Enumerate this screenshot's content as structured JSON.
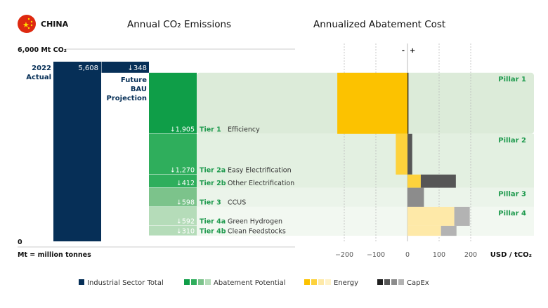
{
  "header": {
    "country": "CHINA",
    "flag_icon": "china-flag-icon",
    "left_title": "Annual CO₂ Emissions",
    "right_title": "Annualized Abatement Cost"
  },
  "colors": {
    "navy": "#062f57",
    "greens": [
      "#0f9e48",
      "#2fae5c",
      "#7cc38b",
      "#b5dcb9"
    ],
    "pillar_bands": [
      "#dcebd9",
      "#e3f0e1",
      "#ebf4ea",
      "#f2f8f1"
    ],
    "energy": [
      "#fcc200",
      "#fdd23c",
      "#fee9a8"
    ],
    "capex": [
      "#1f1f1f",
      "#565656",
      "#8c8c8c",
      "#b3b3b3"
    ],
    "label_green": "#1f9a4e"
  },
  "chart_data": [
    {
      "type": "bar",
      "title": "Annual CO₂ Emissions",
      "ylabel_top": "6,000 Mt CO₂",
      "ylabel_zero": "0",
      "unit_note": "Mt = million tonnes",
      "ylim": [
        0,
        6000
      ],
      "actual": {
        "label": [
          "2022",
          "Actual"
        ],
        "value": 5608,
        "value_label": "5,608"
      },
      "bau": {
        "label": [
          "Future",
          "BAU",
          "Projection"
        ],
        "reduction": 348,
        "reduction_label": "↓348"
      },
      "tiers": [
        {
          "tier": "Tier 1",
          "name": "Efficiency",
          "value": 1905,
          "value_label": "↓1,905",
          "pillar": 1
        },
        {
          "tier": "Tier 2a",
          "name": "Easy Electrification",
          "value": 1270,
          "value_label": "↓1,270",
          "pillar": 2
        },
        {
          "tier": "Tier 2b",
          "name": "Other Electrification",
          "value": 412,
          "value_label": "↓412",
          "pillar": 2
        },
        {
          "tier": "Tier 3",
          "name": "CCUS",
          "value": 598,
          "value_label": "↓598",
          "pillar": 3
        },
        {
          "tier": "Tier 4a",
          "name": "Green Hydrogen",
          "value": 592,
          "value_label": "↓592",
          "pillar": 4
        },
        {
          "tier": "Tier 4b",
          "name": "Clean Feedstocks",
          "value": 310,
          "value_label": "↓310",
          "pillar": 4
        }
      ]
    },
    {
      "type": "bar",
      "orientation": "horizontal-stacked",
      "title": "Annualized Abatement Cost",
      "xlabel": "USD / tCO₂",
      "xlim": [
        -220,
        220
      ],
      "xticks": [
        -200,
        -100,
        0,
        100,
        200
      ],
      "sign_labels": [
        "-",
        "+"
      ],
      "grid": "dotted vertical",
      "pillars": [
        "Pillar 1",
        "Pillar 2",
        "Pillar 3",
        "Pillar 4"
      ],
      "series": [
        {
          "name": "Energy",
          "values": [
            -222,
            -37,
            42,
            0,
            148,
            106
          ]
        },
        {
          "name": "CapEx",
          "values": [
            3,
            15,
            111,
            52,
            49,
            49
          ]
        }
      ]
    }
  ],
  "legend": [
    {
      "label": "Industrial Sector Total"
    },
    {
      "label": "Abatement Potential"
    },
    {
      "label": "Energy"
    },
    {
      "label": "CapEx"
    }
  ]
}
